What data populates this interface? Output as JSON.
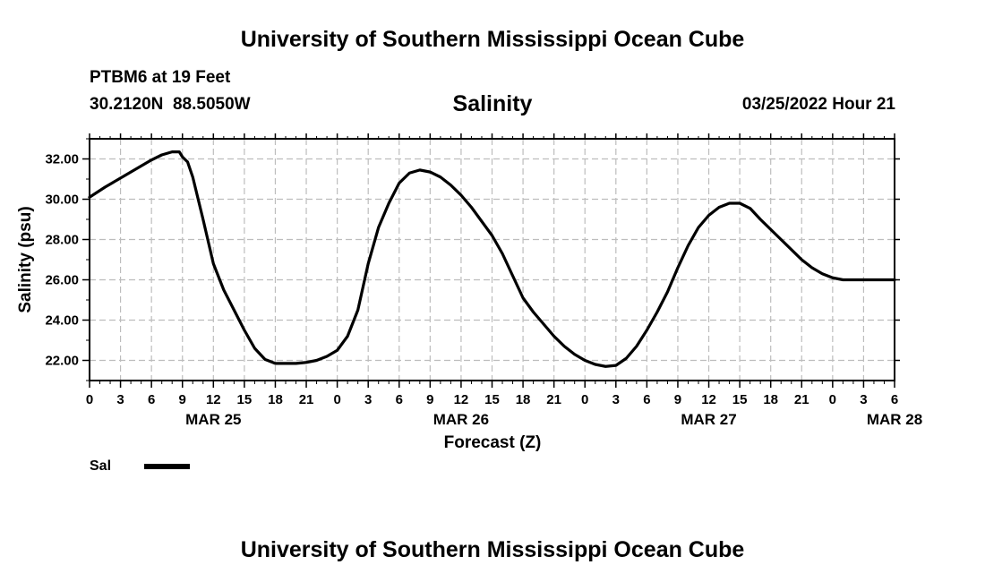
{
  "header": {
    "title": "University of Southern Mississippi Ocean Cube",
    "station": "PTBM6 at 19 Feet",
    "coords": "30.2120N  88.5050W",
    "datetime": "03/25/2022 Hour 21"
  },
  "footer": {
    "title": "University of Southern Mississippi Ocean Cube"
  },
  "chart_data": {
    "type": "line",
    "title": "Salinity",
    "xlabel": "Forecast (Z)",
    "ylabel": "Salinity (psu)",
    "x_unit": "forecast hours from MAR 25 00Z",
    "xlim": [
      0,
      78
    ],
    "ylim": [
      21,
      33
    ],
    "grid": true,
    "x_ticks": [
      0,
      3,
      6,
      9,
      12,
      15,
      18,
      21,
      24,
      27,
      30,
      33,
      36,
      39,
      42,
      45,
      48,
      51,
      54,
      57,
      60,
      63,
      66,
      69,
      72,
      75,
      78
    ],
    "x_tick_labels": [
      "0",
      "3",
      "6",
      "9",
      "12",
      "15",
      "18",
      "21",
      "0",
      "3",
      "6",
      "9",
      "12",
      "15",
      "18",
      "21",
      "0",
      "3",
      "6",
      "9",
      "12",
      "15",
      "18",
      "21",
      "0",
      "3",
      "6"
    ],
    "y_ticks": [
      22,
      24,
      26,
      28,
      30,
      32
    ],
    "y_tick_labels": [
      "22.00",
      "24.00",
      "26.00",
      "28.00",
      "30.00",
      "32.00"
    ],
    "date_labels": [
      {
        "x": 12,
        "label": "MAR 25"
      },
      {
        "x": 36,
        "label": "MAR 26"
      },
      {
        "x": 60,
        "label": "MAR 27"
      },
      {
        "x": 78,
        "label": "MAR 28"
      }
    ],
    "legend_position": "bottom-left",
    "series": [
      {
        "name": "Sal",
        "x": [
          0,
          1.5,
          3,
          4.5,
          6,
          7,
          8,
          8.7,
          9,
          9.5,
          10,
          11,
          12,
          13,
          14,
          15,
          16,
          17,
          18,
          19,
          20,
          21,
          22,
          23,
          24,
          25,
          26,
          27,
          28,
          29,
          30,
          31,
          32,
          33,
          34,
          35,
          36,
          37,
          38,
          39,
          40,
          41,
          42,
          43,
          44,
          45,
          46,
          47,
          48,
          49,
          50,
          51,
          52,
          53,
          54,
          55,
          56,
          57,
          58,
          59,
          60,
          61,
          62,
          63,
          64,
          65,
          66,
          67,
          68,
          69,
          70,
          71,
          72,
          73,
          74,
          75,
          76,
          77,
          78
        ],
        "values": [
          30.1,
          30.6,
          31.05,
          31.5,
          31.95,
          32.2,
          32.35,
          32.35,
          32.1,
          31.85,
          31.1,
          29.0,
          26.8,
          25.5,
          24.5,
          23.5,
          22.6,
          22.05,
          21.85,
          21.85,
          21.85,
          21.9,
          22.0,
          22.2,
          22.5,
          23.2,
          24.5,
          26.8,
          28.6,
          29.8,
          30.8,
          31.3,
          31.45,
          31.35,
          31.1,
          30.7,
          30.2,
          29.6,
          28.9,
          28.2,
          27.3,
          26.2,
          25.1,
          24.4,
          23.8,
          23.2,
          22.7,
          22.3,
          22.0,
          21.8,
          21.7,
          21.75,
          22.1,
          22.7,
          23.5,
          24.4,
          25.4,
          26.6,
          27.7,
          28.6,
          29.2,
          29.6,
          29.8,
          29.8,
          29.55,
          29.0,
          28.5,
          28.0,
          27.5,
          27.0,
          26.6,
          26.3,
          26.1,
          26.0,
          26.0,
          26.0,
          26.0,
          26.0,
          26.0
        ],
        "color": "#000000"
      }
    ]
  }
}
